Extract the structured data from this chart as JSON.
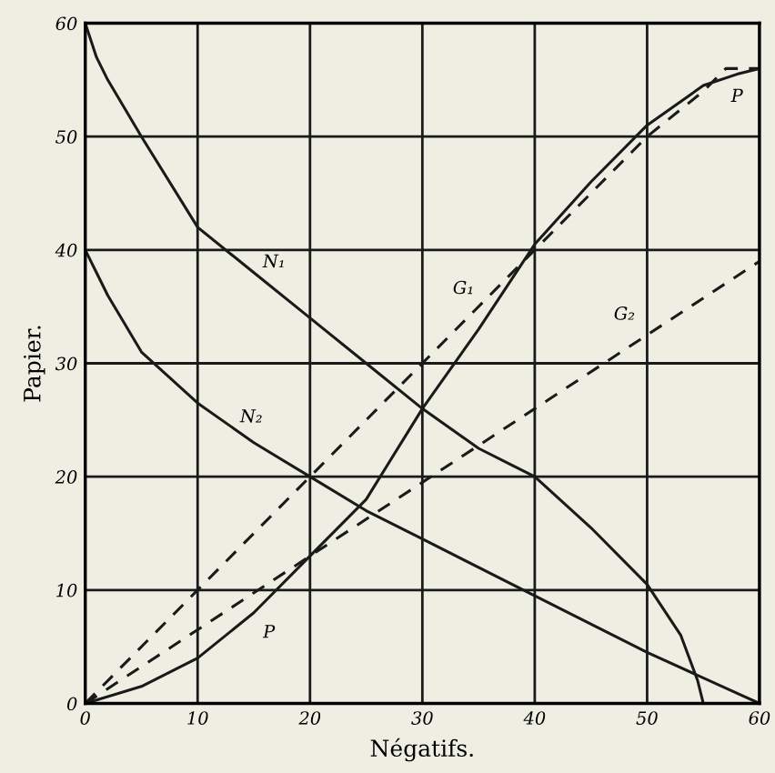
{
  "chart_data": {
    "type": "line",
    "xlabel": "Négatifs.",
    "ylabel": "Papier.",
    "xlim": [
      0,
      60
    ],
    "ylim": [
      0,
      60
    ],
    "xticks": [
      0,
      10,
      20,
      30,
      40,
      50,
      60
    ],
    "yticks": [
      0,
      10,
      20,
      30,
      40,
      50,
      60
    ],
    "grid": true,
    "series": [
      {
        "color": "#1a1a1a",
        "line_style": "solid",
        "x": [
          0,
          1,
          2,
          5,
          10,
          15,
          20,
          25,
          30,
          35,
          40,
          45,
          50,
          53,
          54.5,
          55
        ],
        "values": [
          60,
          57,
          55,
          50,
          42,
          38,
          34,
          30,
          26,
          22.5,
          20,
          15.5,
          10.5,
          6,
          2,
          0
        ]
      },
      {
        "color": "#1a1a1a",
        "line_style": "solid",
        "x": [
          0,
          1,
          2,
          5,
          10,
          15,
          20,
          25,
          30,
          40,
          50,
          60
        ],
        "values": [
          40,
          38,
          36,
          31,
          26.5,
          23,
          20,
          17,
          14.5,
          9.5,
          4.5,
          0
        ]
      },
      {
        "color": "#1a1a1a",
        "line_style": "dashed",
        "x": [
          0,
          10,
          20,
          30,
          40,
          50,
          55,
          57,
          60
        ],
        "values": [
          0,
          10,
          20,
          30,
          40,
          50,
          54,
          56,
          56
        ]
      },
      {
        "color": "#1a1a1a",
        "line_style": "dashed",
        "x": [
          0,
          20,
          30,
          40,
          60
        ],
        "values": [
          0,
          13,
          19.5,
          26,
          39
        ]
      },
      {
        "color": "#1a1a1a",
        "line_style": "solid",
        "x": [
          0,
          5,
          10,
          15,
          20,
          25,
          30,
          35,
          40,
          45,
          50,
          55,
          58,
          60
        ],
        "values": [
          0,
          1.5,
          4,
          8,
          13,
          18,
          26,
          33,
          40.5,
          46,
          51,
          54.5,
          55.5,
          56
        ]
      }
    ],
    "annotations": [
      {
        "text": "N₁",
        "x": 15,
        "y": 38
      },
      {
        "text": "N₂",
        "x": 15,
        "y": 23
      },
      {
        "text": "G₁",
        "x": 35,
        "y": 35
      },
      {
        "text": "G₂",
        "x": 50,
        "y": 32.5
      },
      {
        "text": "P",
        "x": 15,
        "y": 8
      },
      {
        "text": "P",
        "x": 58,
        "y": 55.5
      }
    ]
  }
}
